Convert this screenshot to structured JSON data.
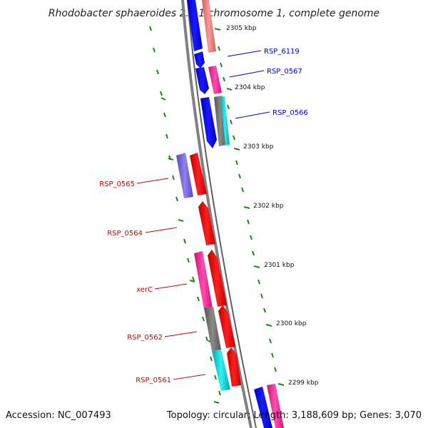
{
  "header": {
    "title": "Rhodobacter sphaeroides 2.4.1 chromosome 1, complete genome"
  },
  "footer": {
    "accession": "Accession: NC_007493",
    "stats": "Topology: circular; Length: 3,188,609 bp; Genes: 3,070"
  },
  "ruler": [
    {
      "label": "2305 kbp"
    },
    {
      "label": "2304 kbp"
    },
    {
      "label": "2303 kbp"
    },
    {
      "label": "2302 kbp"
    },
    {
      "label": "2301 kbp"
    },
    {
      "label": "2300 kbp"
    },
    {
      "label": "2299 kbp"
    }
  ],
  "genes": [
    {
      "label": "RSP_6119",
      "color": "#0000cc"
    },
    {
      "label": "RSP_0567",
      "color": "#0000cc"
    },
    {
      "label": "RSP_0566",
      "color": "#0000cc"
    },
    {
      "label": "RSP_0565",
      "color": "#cc0000"
    },
    {
      "label": "RSP_0564",
      "color": "#cc0000"
    },
    {
      "label": "xerC",
      "color": "#cc0000"
    },
    {
      "label": "RSP_0562",
      "color": "#cc0000"
    },
    {
      "label": "RSP_0561",
      "color": "#cc0000"
    }
  ],
  "colors": {
    "backbone": "#7f7f7f",
    "tick": "#008000",
    "forward_cds": "#0000ee",
    "reverse_cds": "#ee0000",
    "pink": "#ff2fa0",
    "salmon": "#ef7f7f",
    "cyan": "#00cfd0",
    "grey": "#6f6f6f",
    "purple": "#7060d0"
  }
}
